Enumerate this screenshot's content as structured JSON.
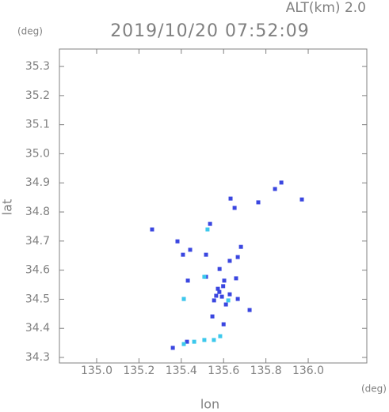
{
  "chart_data": {
    "type": "scatter",
    "title": "2019/10/20 07:52:09",
    "subtitle": "ALT(km) 2.0",
    "x_label": "lon",
    "y_label": "lat",
    "x_unit": "(deg)",
    "y_unit": "(deg)",
    "xlim": [
      134.824,
      136.277
    ],
    "ylim": [
      34.281,
      35.36
    ],
    "xticks": [
      {
        "value": 135.0,
        "label": "135.0"
      },
      135.2,
      135.4,
      135.6,
      135.8,
      {
        "value": 136.0,
        "label": "136.0"
      }
    ],
    "yticks": [
      34.3,
      34.4,
      34.5,
      34.6,
      34.7,
      34.8,
      34.9,
      {
        "value": 35.0,
        "label": "35.0"
      },
      35.1,
      35.2,
      35.3
    ],
    "series": [
      {
        "color": "#3a46e0",
        "x": [
          135.843,
          135.873,
          135.97,
          135.764,
          135.633,
          135.652,
          135.262,
          135.382,
          135.536,
          135.682,
          135.408,
          135.442,
          135.517,
          135.629,
          135.667,
          135.581,
          135.517,
          135.603,
          135.431,
          135.659,
          135.573,
          135.592,
          135.555,
          135.611,
          135.629,
          135.667,
          135.723,
          135.547,
          135.6,
          135.412,
          135.36,
          135.427,
          135.58,
          135.565,
          135.598
        ],
        "y": [
          34.879,
          34.901,
          34.843,
          34.833,
          34.846,
          34.814,
          34.74,
          34.699,
          34.759,
          34.68,
          34.653,
          34.67,
          34.653,
          34.632,
          34.645,
          34.604,
          34.577,
          34.564,
          34.564,
          34.572,
          34.536,
          34.509,
          34.496,
          34.482,
          34.517,
          34.501,
          34.463,
          34.441,
          34.414,
          34.501,
          34.333,
          34.354,
          34.525,
          34.512,
          34.545
        ]
      },
      {
        "color": "#3cc8ec",
        "x": [
          135.524,
          135.509,
          135.412,
          135.412,
          135.461,
          135.509,
          135.554,
          135.622,
          135.584
        ],
        "y": [
          34.74,
          34.577,
          34.501,
          34.346,
          34.354,
          34.36,
          34.36,
          34.496,
          34.373
        ]
      }
    ]
  }
}
